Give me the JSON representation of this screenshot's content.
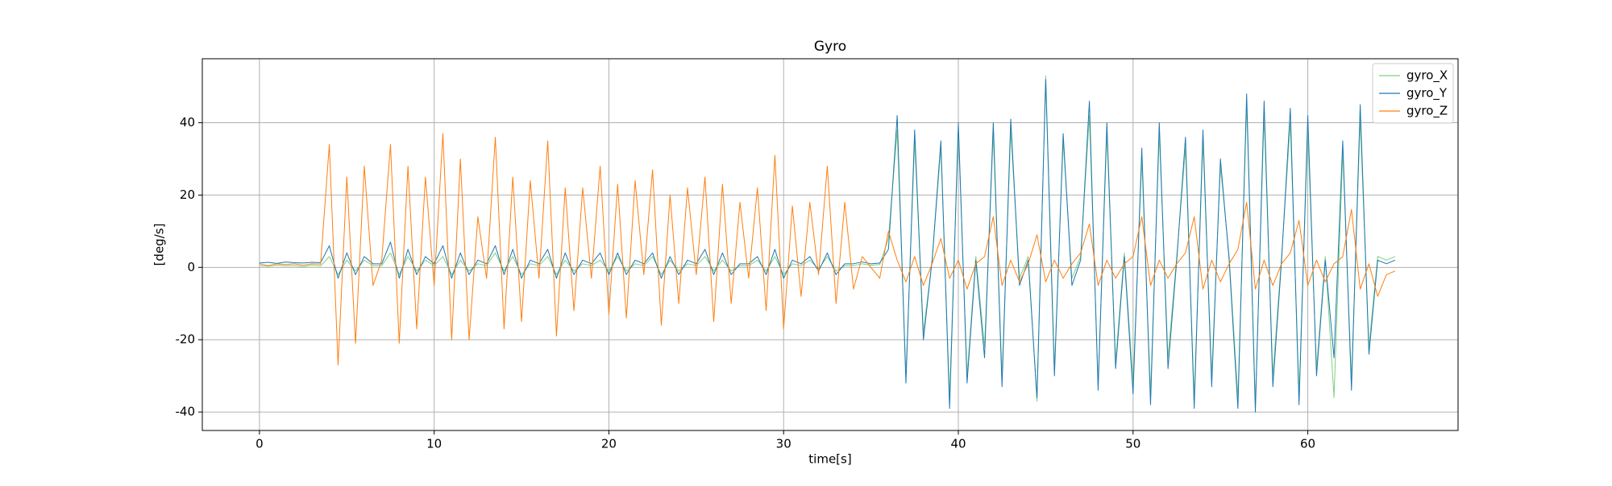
{
  "chart_data": {
    "type": "line",
    "title": "Gyro",
    "x_label": "time[s]",
    "y_label": "[deg/s]",
    "xlim": [
      -3.27,
      68.6
    ],
    "ylim": [
      -45.1,
      57.7
    ],
    "xticks": [
      0,
      10,
      20,
      30,
      40,
      50,
      60
    ],
    "yticks": [
      -40,
      -20,
      0,
      20,
      40
    ],
    "grid": true,
    "legend": "upper right",
    "x": [
      0,
      0.5,
      1,
      1.5,
      2,
      2.5,
      3,
      3.5,
      4,
      4.5,
      5,
      5.5,
      6,
      6.5,
      7,
      7.5,
      8,
      8.5,
      9,
      9.5,
      10,
      10.5,
      11,
      11.5,
      12,
      12.5,
      13,
      13.5,
      14,
      14.5,
      15,
      15.5,
      16,
      16.5,
      17,
      17.5,
      18,
      18.5,
      19,
      19.5,
      20,
      20.5,
      21,
      21.5,
      22,
      22.5,
      23,
      23.5,
      24,
      24.5,
      25,
      25.5,
      26,
      26.5,
      27,
      27.5,
      28,
      28.5,
      29,
      29.5,
      30,
      30.5,
      31,
      31.5,
      32,
      32.5,
      33,
      33.5,
      34,
      34.5,
      35,
      35.5,
      36,
      36.5,
      37,
      37.5,
      38,
      38.5,
      39,
      39.5,
      40,
      40.5,
      41,
      41.5,
      42,
      42.5,
      43,
      43.5,
      44,
      44.5,
      45,
      45.5,
      46,
      46.5,
      47,
      47.5,
      48,
      48.5,
      49,
      49.5,
      50,
      50.5,
      51,
      51.5,
      52,
      52.5,
      53,
      53.5,
      54,
      54.5,
      55,
      55.5,
      56,
      56.5,
      57,
      57.5,
      58,
      58.5,
      59,
      59.5,
      60,
      60.5,
      61,
      61.5,
      62,
      62.5,
      63,
      63.5,
      64,
      64.5,
      65
    ],
    "series": [
      {
        "name": "gyro_X",
        "color": "#7fcf7f",
        "values": [
          0.5,
          0.3,
          0.6,
          0.4,
          0.5,
          0.2,
          0.6,
          0.4,
          3,
          -2,
          2,
          -1,
          2,
          0.5,
          0.5,
          4,
          -2,
          3,
          -1,
          2,
          0.5,
          3,
          -2,
          2,
          -1,
          1,
          0.5,
          4,
          -1,
          3,
          -2,
          1,
          0.5,
          3,
          -2,
          2,
          -1,
          1,
          0.5,
          2,
          -1,
          3,
          -1,
          1,
          0.5,
          3,
          -2,
          2,
          -1,
          1,
          0.5,
          3,
          -1,
          2,
          -1,
          0.5,
          0.5,
          2,
          -1,
          3,
          -2,
          1,
          0.5,
          2,
          -0.5,
          3,
          -1,
          0.5,
          0.5,
          1,
          0.6,
          0.8,
          8,
          38,
          -30,
          35,
          -18,
          2,
          33,
          -36,
          38,
          -30,
          3,
          -22,
          37,
          -30,
          38,
          -3,
          3,
          -37,
          53,
          -28,
          35,
          -3,
          3,
          42,
          -32,
          37,
          -26,
          4,
          -32,
          30,
          -35,
          37,
          -25,
          3,
          33,
          -36,
          35,
          -30,
          28,
          3,
          -36,
          45,
          -38,
          42,
          -30,
          3,
          40,
          -35,
          38,
          -28,
          3,
          -36,
          32,
          -31,
          41,
          -22,
          3,
          2,
          3
        ]
      },
      {
        "name": "gyro_Y",
        "color": "#1f77b4",
        "values": [
          1.2,
          1.4,
          1.1,
          1.5,
          1.3,
          1.2,
          1.4,
          1.3,
          6,
          -3,
          4,
          -2,
          3,
          1,
          1,
          7,
          -3,
          5,
          -2,
          3,
          1,
          6,
          -3,
          4,
          -2,
          2,
          1,
          6,
          -2,
          5,
          -3,
          2,
          1,
          5,
          -3,
          4,
          -2,
          2,
          1,
          4,
          -2,
          4,
          -2,
          2,
          1,
          4,
          -3,
          3,
          -2,
          2,
          1,
          5,
          -2,
          4,
          -2,
          1,
          1,
          3,
          -2,
          5,
          -3,
          2,
          1,
          3,
          -1,
          4,
          -2,
          1,
          1,
          1.5,
          1,
          1.2,
          5,
          42,
          -32,
          38,
          -20,
          2,
          35,
          -39,
          40,
          -32,
          2,
          -25,
          40,
          -33,
          41,
          -5,
          2,
          -36,
          52,
          -30,
          37,
          -5,
          2,
          46,
          -34,
          40,
          -28,
          3,
          -35,
          33,
          -38,
          40,
          -28,
          2,
          36,
          -39,
          38,
          -33,
          30,
          2,
          -39,
          48,
          -40,
          46,
          -33,
          2,
          44,
          -38,
          42,
          -30,
          2,
          -25,
          35,
          -34,
          45,
          -24,
          2,
          1,
          2
        ]
      },
      {
        "name": "gyro_Z",
        "color": "#ff7f0e",
        "values": [
          1,
          0.5,
          1,
          0.8,
          1,
          0.6,
          1,
          0.9,
          34,
          -27,
          25,
          -21,
          28,
          -5,
          2,
          34,
          -21,
          28,
          -17,
          25,
          -5,
          37,
          -20,
          30,
          -20,
          14,
          -3,
          36,
          -17,
          25,
          -15,
          24,
          -3,
          35,
          -19,
          22,
          -12,
          22,
          -3,
          28,
          -13,
          23,
          -14,
          24,
          -2,
          27,
          -16,
          20,
          -10,
          22,
          -2,
          25,
          -15,
          23,
          -10,
          18,
          -3,
          22,
          -12,
          31,
          -17,
          17,
          -8,
          18,
          -2,
          28,
          -10,
          18,
          -6,
          3,
          0,
          -3,
          10,
          2,
          -4,
          3,
          -5,
          1,
          8,
          -3,
          2,
          -6,
          1,
          3,
          14,
          -5,
          2,
          -4,
          1,
          9,
          -4,
          2,
          -3,
          1,
          4,
          12,
          -5,
          2,
          -3,
          1,
          3,
          14,
          -5,
          2,
          -3,
          1,
          4,
          14,
          -6,
          2,
          -4,
          1,
          5,
          18,
          -6,
          2,
          -5,
          1,
          4,
          13,
          -5,
          2,
          -4,
          1,
          3,
          16,
          -6,
          1,
          -8,
          -2,
          -1
        ]
      }
    ]
  }
}
